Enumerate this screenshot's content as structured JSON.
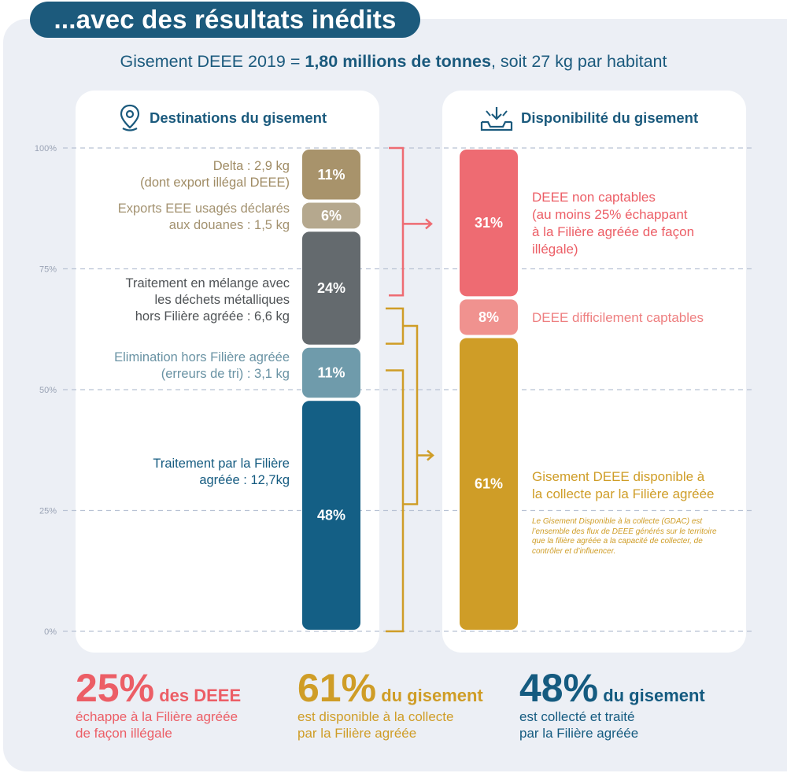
{
  "header": {
    "title": "...avec des résultats inédits",
    "subtitle_prefix": "Gisement DEEE 2019 = ",
    "subtitle_bold": "1,80 millions de tonnes",
    "subtitle_suffix": ", soit 27 kg par habitant"
  },
  "panels": {
    "left_title": "Destinations du gisement",
    "left_icon": "location-pin-icon",
    "right_title": "Disponibilité du gisement",
    "right_icon": "inbox-download-icon"
  },
  "colors": {
    "delta": "#a8936b",
    "exports": "#b5a88e",
    "melange": "#646a6e",
    "elimination": "#6f9bab",
    "filiere": "#145f85",
    "non_captables": "#ee6b72",
    "difficilement": "#f0928f",
    "disponible": "#cf9d27",
    "gold_text": "#cf9d27"
  },
  "chart_data": [
    {
      "type": "bar",
      "stacked": true,
      "title": "Destinations du gisement",
      "ylim": [
        0,
        100
      ],
      "yticks": [
        "0%",
        "25%",
        "50%",
        "75%",
        "100%"
      ],
      "grid": true,
      "segments": [
        {
          "key": "filiere",
          "value": 48,
          "value_label": "48%",
          "label_lines": [
            "Traitement par la Filière",
            "agréée : 12,7kg"
          ],
          "color": "#145f85",
          "label_color": "#155b80"
        },
        {
          "key": "elimination",
          "value": 11,
          "value_label": "11%",
          "label_lines": [
            "Elimination hors Filière agréée",
            "(erreurs de tri) : 3,1 kg"
          ],
          "color": "#6f9bab",
          "label_color": "#6a93a4"
        },
        {
          "key": "melange",
          "value": 24,
          "value_label": "24%",
          "label_lines": [
            "Traitement en mélange avec",
            "les déchets métalliques",
            "hors Filière agréée : 6,6 kg"
          ],
          "color": "#646a6e",
          "label_color": "#4f5356"
        },
        {
          "key": "exports",
          "value": 6,
          "value_label": "6%",
          "label_lines": [
            "Exports EEE usagés déclarés",
            "aux douanes : 1,5 kg"
          ],
          "color": "#b5a88e",
          "label_color": "#a39270"
        },
        {
          "key": "delta",
          "value": 11,
          "value_label": "11%",
          "label_lines": [
            "Delta : 2,9 kg",
            "(dont export illégal DEEE)"
          ],
          "color": "#a8936b",
          "label_color": "#a08c65"
        }
      ]
    },
    {
      "type": "bar",
      "stacked": true,
      "title": "Disponibilité du gisement",
      "ylim": [
        0,
        100
      ],
      "segments": [
        {
          "key": "disponible",
          "value": 61,
          "value_label": "61%",
          "label_lines": [
            "Gisement DEEE disponible à",
            "la collecte par la Filière agréée"
          ],
          "color": "#cf9d27",
          "label_color": "#cf9d27"
        },
        {
          "key": "difficilement",
          "value": 8,
          "value_label": "8%",
          "label_lines": [
            "DEEE difficilement captables"
          ],
          "color": "#f0928f",
          "label_color": "#ee7f80"
        },
        {
          "key": "non_captables",
          "value": 31,
          "value_label": "31%",
          "label_lines": [
            "DEEE non captables",
            "(au moins 25% échappant",
            "à la Filière agréée de façon",
            "illégale)"
          ],
          "color": "#ee6b72",
          "label_color": "#ec5e66"
        }
      ]
    }
  ],
  "note": "Le Gisement Disponible à la collecte (GDAC) est l’ensemble des flux de DEEE générés sur le territoire que la filière agréée a la capacité de collecter, de contrôler et d’influencer.",
  "bottom": [
    {
      "big": "25%",
      "mid": " des DEEE",
      "lines": [
        "échappe à la Filière agréée",
        "de façon illégale"
      ],
      "color": "#ec5e66"
    },
    {
      "big": "61%",
      "mid": " du gisement",
      "lines": [
        "est disponible à la collecte",
        "par la Filière agréée"
      ],
      "color": "#cf9d27"
    },
    {
      "big": "48%",
      "mid": " du gisement",
      "lines": [
        "est collecté et traité",
        "par la Filière agréée"
      ],
      "color": "#155b80"
    }
  ]
}
